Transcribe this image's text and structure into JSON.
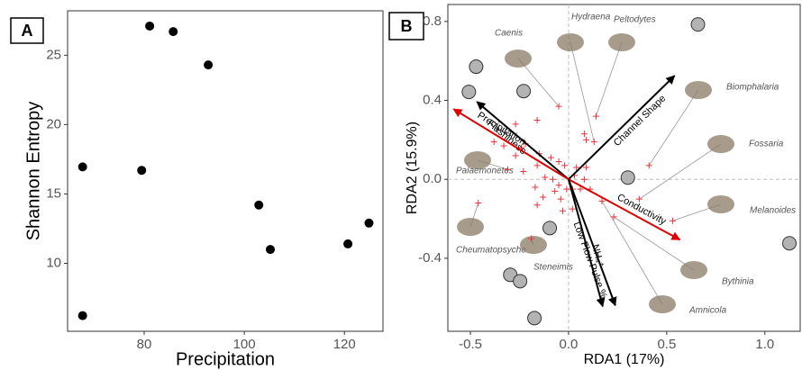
{
  "chart_data": [
    {
      "type": "scatter",
      "panel": "A",
      "xlabel": "Precipitation",
      "ylabel": "Shannon Entropy",
      "x": [
        67.7,
        67.7,
        79.5,
        81.1,
        85.8,
        92.8,
        102.9,
        105.2,
        120.7,
        124.9
      ],
      "y": [
        16.95,
        6.23,
        16.7,
        27.1,
        26.7,
        24.3,
        14.2,
        11.0,
        11.4,
        12.9
      ],
      "color": "#000000",
      "xlim": [
        64.7,
        127.7
      ],
      "ylim": [
        5.1,
        28.2
      ],
      "xticks": [
        80,
        100,
        120
      ],
      "yticks": [
        10,
        15,
        20,
        25
      ]
    },
    {
      "type": "biplot",
      "panel": "B",
      "xlabel": "RDA1 (17%)",
      "ylabel": "RDA2 (15.9%)",
      "xlim": [
        -0.615,
        1.18
      ],
      "ylim": [
        -0.77,
        0.886
      ],
      "xticks": [
        -0.5,
        {
          "value": 0.0,
          "label": "0.0"
        },
        0.5,
        {
          "value": 1.0,
          "label": "1.0"
        }
      ],
      "yticks": [
        -0.4,
        {
          "value": 0.0,
          "label": "0.0"
        },
        0.4,
        0.8
      ],
      "sites": {
        "color": "#e8323a",
        "x": [
          -0.05,
          0.08,
          0.09,
          0.13,
          0.14,
          -0.16,
          -0.27,
          -0.22,
          -0.24,
          -0.27,
          -0.15,
          -0.09,
          -0.05,
          -0.02,
          0.04,
          0.09,
          -0.16,
          -0.31,
          -0.12,
          -0.08,
          -0.05,
          -0.01,
          -0.07,
          -0.04,
          0.02,
          0.06,
          0.11,
          0.17,
          0.23,
          0.36,
          0.41,
          0.53,
          -0.46,
          -0.16,
          -0.19,
          -0.03,
          0.02,
          -0.13,
          -0.17,
          -0.23,
          -0.33,
          -0.38,
          0.03,
          0.08
        ],
        "y": [
          0.37,
          0.23,
          0.2,
          0.19,
          0.32,
          0.3,
          0.28,
          0.18,
          0.16,
          0.12,
          0.13,
          0.11,
          0.09,
          0.07,
          0.06,
          0.06,
          0.07,
          0.05,
          0.01,
          0.0,
          -0.03,
          -0.05,
          -0.06,
          -0.1,
          -0.05,
          -0.05,
          -0.05,
          -0.11,
          -0.19,
          -0.1,
          0.07,
          -0.21,
          -0.12,
          -0.13,
          -0.3,
          -0.16,
          -0.15,
          -0.09,
          -0.04,
          0.04,
          0.17,
          0.19,
          0.02,
          0.0
        ]
      },
      "circles": {
        "color": "#b3b3b3",
        "x": [
          0.659,
          -0.471,
          -0.508,
          -0.229,
          0.302,
          1.125,
          -0.096,
          -0.297,
          -0.247,
          -0.174
        ],
        "y": [
          0.785,
          0.571,
          0.443,
          0.447,
          0.009,
          -0.324,
          -0.247,
          -0.484,
          -0.516,
          -0.703
        ]
      },
      "arrows": [
        {
          "name": "Channel Shape",
          "x": 0.54,
          "y": 0.525,
          "color": "#000000"
        },
        {
          "name": "Flashiness",
          "x": -0.467,
          "y": 0.393,
          "color": "#000000"
        },
        {
          "name": "Precipitation",
          "x": -0.586,
          "y": 0.356,
          "color": "#e00000"
        },
        {
          "name": "Conductivity",
          "x": 0.567,
          "y": -0.306,
          "color": "#e00000"
        },
        {
          "name": "Low Flow Pulse %",
          "x": 0.238,
          "y": -0.639,
          "color": "#000000"
        },
        {
          "name": "NH₄⁺",
          "x": 0.174,
          "y": -0.644,
          "color": "#000000"
        }
      ],
      "species": [
        "Caenis",
        "Hydraena",
        "Peltodytes",
        "Biomphalaria",
        "Fossaria",
        "Melanoides",
        "Bythinia",
        "Amnicola",
        "Palaemonetes",
        "Cheumatopsyche",
        "Steneimis"
      ]
    }
  ]
}
